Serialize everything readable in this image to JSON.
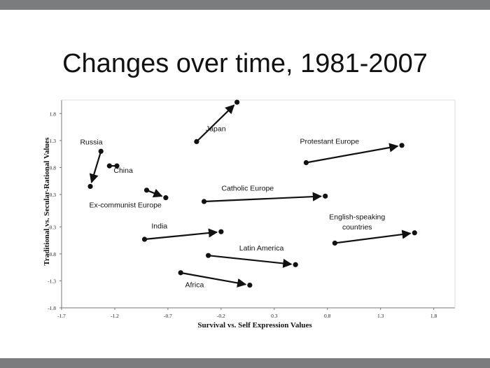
{
  "slide": {
    "title": "Changes over time, 1981-2007"
  },
  "chart_data": {
    "type": "scatter",
    "title": "Changes over time, 1981-2007",
    "xlabel": "Survival vs. Self Expression Values",
    "ylabel": "Traditional vs. Secular-Rational Values",
    "xlim": [
      -1.7,
      2.0
    ],
    "ylim": [
      -1.8,
      2.05
    ],
    "x_ticks": [
      -1.7,
      -1.2,
      -0.7,
      -0.2,
      0.3,
      0.8,
      1.3,
      1.8
    ],
    "x_tick_labels": [
      "-1.7",
      "-1.2",
      "-0.7",
      "-0.2",
      "0.3",
      "0.8",
      "1.3",
      "1.8"
    ],
    "y_ticks": [
      1.8,
      1.3,
      0.8,
      0.3,
      -0.3,
      -0.8,
      -1.3,
      -1.8
    ],
    "y_tick_labels": [
      "1.8",
      "1.3",
      "0.8",
      "0.3",
      "-0.3",
      "-0.8",
      "-1.3",
      "-1.8"
    ],
    "grid": false,
    "legend": "none",
    "line_color": "#111111",
    "series": [
      {
        "name": "Japan",
        "start": [
          -0.43,
          1.28
        ],
        "end": [
          -0.05,
          2.01
        ]
      },
      {
        "name": "Russia",
        "start": [
          -1.33,
          1.1
        ],
        "end": [
          -1.43,
          0.45
        ]
      },
      {
        "name": "China",
        "start": [
          -1.25,
          0.83
        ],
        "end": [
          -1.18,
          0.83
        ]
      },
      {
        "name": "Ex-communist Europe",
        "start": [
          -0.9,
          0.38
        ],
        "end": [
          -0.72,
          0.24
        ]
      },
      {
        "name": "Protestant Europe",
        "start": [
          0.6,
          0.89
        ],
        "end": [
          1.5,
          1.21
        ]
      },
      {
        "name": "Catholic Europe",
        "start": [
          -0.36,
          0.17
        ],
        "end": [
          0.78,
          0.27
        ]
      },
      {
        "name": "India",
        "start": [
          -0.92,
          -0.53
        ],
        "end": [
          -0.2,
          -0.39
        ]
      },
      {
        "name": "English-speaking countries",
        "start": [
          0.87,
          -0.6
        ],
        "end": [
          1.62,
          -0.41
        ]
      },
      {
        "name": "Latin America",
        "start": [
          -0.32,
          -0.83
        ],
        "end": [
          0.5,
          -1.0
        ]
      },
      {
        "name": "Africa",
        "start": [
          -0.58,
          -1.15
        ],
        "end": [
          0.07,
          -1.38
        ]
      }
    ],
    "annotations": [
      {
        "text": "Japan",
        "x": -0.25,
        "y": 1.47
      },
      {
        "text": "Russia",
        "x": -1.42,
        "y": 1.23
      },
      {
        "text": "China",
        "x": -1.12,
        "y": 0.7
      },
      {
        "text": "Ex-communist Europe",
        "x": -1.1,
        "y": 0.06
      },
      {
        "text": "Protestant Europe",
        "x": 0.82,
        "y": 1.24
      },
      {
        "text": "Catholic Europe",
        "x": 0.05,
        "y": 0.37
      },
      {
        "text": "India",
        "x": -0.78,
        "y": -0.33
      },
      {
        "text": "English-speaking countries",
        "x": 1.08,
        "y": -0.16
      },
      {
        "text": "countries",
        "x": 1.08,
        "y": -0.35
      },
      {
        "text": "Latin America",
        "x": 0.18,
        "y": -0.74
      },
      {
        "text": "Africa",
        "x": -0.45,
        "y": -1.42
      }
    ]
  }
}
